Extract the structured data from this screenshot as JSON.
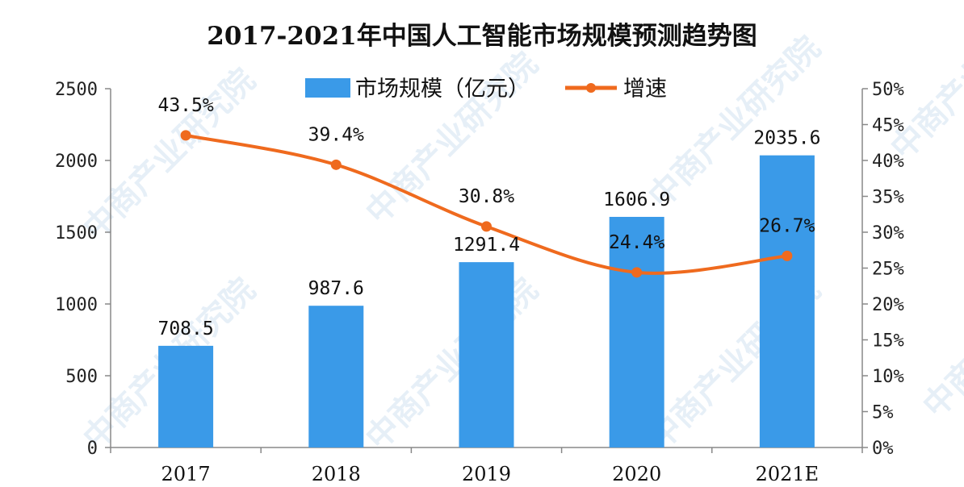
{
  "chart_data": {
    "type": "bar",
    "title": "2017-2021年中国人工智能市场规模预测趋势图",
    "categories": [
      "2017",
      "2018",
      "2019",
      "2020",
      "2021E"
    ],
    "series": [
      {
        "name": "市场规模（亿元）",
        "type": "bar",
        "axis": "left",
        "values": [
          708.5,
          987.6,
          1291.4,
          1606.9,
          2035.6
        ],
        "labels": [
          "708.5",
          "987.6",
          "1291.4",
          "1606.9",
          "2035.6"
        ],
        "color": "#3a9ae8"
      },
      {
        "name": "增速",
        "type": "line",
        "axis": "right",
        "values": [
          43.5,
          39.4,
          30.8,
          24.4,
          26.7
        ],
        "labels": [
          "43.5%",
          "39.4%",
          "30.8%",
          "24.4%",
          "26.7%"
        ],
        "color": "#ef6a1e"
      }
    ],
    "y_left": {
      "range": [
        0,
        2500
      ],
      "ticks": [
        0,
        500,
        1000,
        1500,
        2000,
        2500
      ],
      "tick_labels": [
        "0",
        "500",
        "1000",
        "1500",
        "2000",
        "2500"
      ]
    },
    "y_right": {
      "range": [
        0,
        50
      ],
      "ticks": [
        0,
        5,
        10,
        15,
        20,
        25,
        30,
        35,
        40,
        45,
        50
      ],
      "tick_labels": [
        "0%",
        "5%",
        "10%",
        "15%",
        "20%",
        "25%",
        "30%",
        "35%",
        "40%",
        "45%",
        "50%"
      ]
    },
    "legend_position": "top-center",
    "grid": false
  },
  "watermark": {
    "text": "中商产业研究院"
  }
}
